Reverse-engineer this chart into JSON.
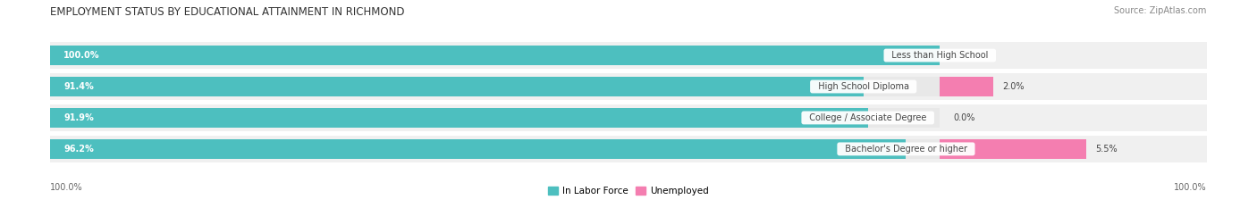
{
  "title": "EMPLOYMENT STATUS BY EDUCATIONAL ATTAINMENT IN RICHMOND",
  "source": "Source: ZipAtlas.com",
  "categories": [
    "Less than High School",
    "High School Diploma",
    "College / Associate Degree",
    "Bachelor's Degree or higher"
  ],
  "labor_force_pct": [
    100.0,
    91.4,
    91.9,
    96.2
  ],
  "unemployed_pct": [
    0.0,
    2.0,
    0.0,
    5.5
  ],
  "labor_force_color": "#4DBFBF",
  "unemployed_color": "#F47EB0",
  "background_bar_color": "#E8E8E8",
  "row_bg_color": "#F0F0F0",
  "white": "#FFFFFF",
  "title_fontsize": 8.5,
  "source_fontsize": 7,
  "label_fontsize": 7,
  "tick_fontsize": 7,
  "legend_fontsize": 7.5,
  "bar_max": 100.0,
  "total_scale": 200.0,
  "unemp_scale": 20.0
}
